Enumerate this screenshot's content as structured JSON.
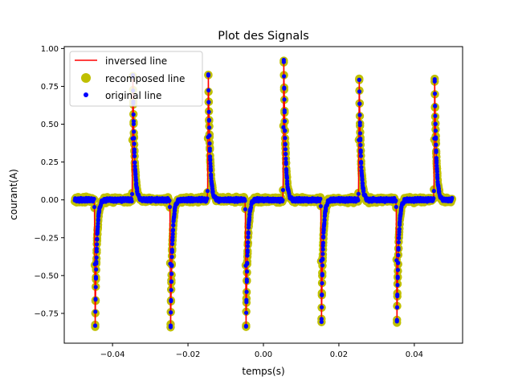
{
  "chart_data": {
    "type": "line",
    "title": "Plot des Signals",
    "xlabel": "temps(s)",
    "ylabel": "courant(A)",
    "xlim": [
      -0.0528,
      0.0528
    ],
    "ylim": [
      -0.9469,
      1.0126
    ],
    "x_ticks": [
      -0.04,
      -0.02,
      0.0,
      0.02,
      0.04
    ],
    "x_tick_labels": [
      "−0.04",
      "−0.02",
      "0.00",
      "0.02",
      "0.04"
    ],
    "y_ticks": [
      -0.75,
      -0.5,
      -0.25,
      0.0,
      0.25,
      0.5,
      0.75,
      1.0
    ],
    "y_tick_labels": [
      "−0.75",
      "−0.50",
      "−0.25",
      "0.00",
      "0.25",
      "0.50",
      "0.75",
      "1.00"
    ],
    "grid": false,
    "legend_position": "top-left",
    "x_range": [
      -0.05,
      0.05
    ],
    "pulses": {
      "negative": [
        {
          "t": -0.0446,
          "peak": -0.84
        },
        {
          "t": -0.0246,
          "peak": -0.86
        },
        {
          "t": -0.0046,
          "peak": -0.86
        },
        {
          "t": 0.0154,
          "peak": -0.8
        },
        {
          "t": 0.0354,
          "peak": -0.82
        }
      ],
      "positive": [
        {
          "t": -0.0346,
          "peak": 0.82
        },
        {
          "t": -0.0146,
          "peak": 0.84
        },
        {
          "t": 0.0054,
          "peak": 0.94
        },
        {
          "t": 0.0254,
          "peak": 0.81
        },
        {
          "t": 0.0454,
          "peak": 0.81
        }
      ]
    },
    "series": [
      {
        "name": "inversed line",
        "style": "line",
        "color": "#ff0000"
      },
      {
        "name": "recomposed line",
        "style": "large-markers",
        "color": "#bfbf00"
      },
      {
        "name": "original line",
        "style": "small-markers",
        "color": "#0000ff"
      }
    ]
  }
}
